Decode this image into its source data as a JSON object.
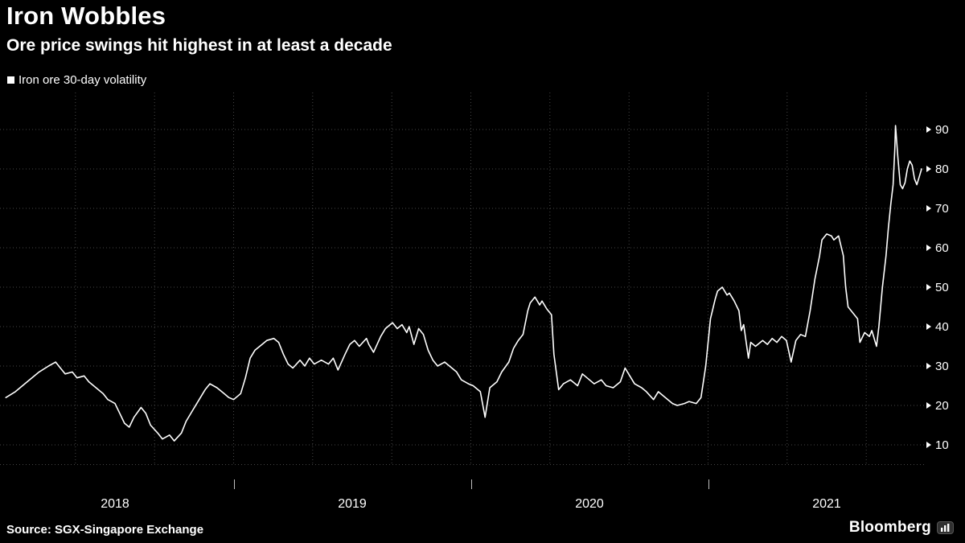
{
  "header": {
    "title": "Iron Wobbles",
    "subtitle": "Ore price swings hit highest in at least a decade"
  },
  "legend": {
    "label": "Iron ore 30-day volatility"
  },
  "footer": {
    "source": "Source: SGX-Singapore Exchange",
    "brand": "Bloomberg"
  },
  "colors": {
    "background": "#000000",
    "line": "#ffffff",
    "grid": "#464646",
    "text": "#ffffff",
    "tick": "#bfbfbf"
  },
  "chart_data": {
    "type": "line",
    "title": "Iron Wobbles",
    "subtitle": "Ore price swings hit highest in at least a decade",
    "series_name": "Iron ore 30-day volatility",
    "legend_position": "top-left",
    "y_axis_side": "right",
    "grid": "dotted",
    "x_unit": "decimal_year",
    "x_domain": [
      2018.0153,
      2021.9203
    ],
    "y_domain": [
      1.43,
      99.39
    ],
    "y_ticks": [
      10,
      20,
      30,
      40,
      50,
      60,
      70,
      80,
      90
    ],
    "y_baseline": 5,
    "x_tick_labels": [
      "2018",
      "2019",
      "2020",
      "2021"
    ],
    "x_tick_centers": [
      2018.5,
      2019.5,
      2020.5,
      2021.5
    ],
    "year_boundaries": [
      2019,
      2020,
      2021
    ],
    "x": [
      2018.04,
      2018.08,
      2018.13,
      2018.18,
      2018.22,
      2018.25,
      2018.27,
      2018.29,
      2018.32,
      2018.34,
      2018.37,
      2018.39,
      2018.42,
      2018.45,
      2018.47,
      2018.5,
      2018.52,
      2018.54,
      2018.56,
      2018.58,
      2018.61,
      2018.63,
      2018.65,
      2018.68,
      2018.7,
      2018.73,
      2018.75,
      2018.78,
      2018.8,
      2018.83,
      2018.86,
      2018.88,
      2018.9,
      2018.93,
      2018.96,
      2018.98,
      2019.0,
      2019.03,
      2019.05,
      2019.07,
      2019.09,
      2019.12,
      2019.14,
      2019.17,
      2019.19,
      2019.21,
      2019.23,
      2019.25,
      2019.28,
      2019.3,
      2019.32,
      2019.34,
      2019.37,
      2019.4,
      2019.42,
      2019.44,
      2019.47,
      2019.49,
      2019.51,
      2019.53,
      2019.56,
      2019.57,
      2019.59,
      2019.62,
      2019.64,
      2019.67,
      2019.69,
      2019.71,
      2019.73,
      2019.74,
      2019.76,
      2019.78,
      2019.8,
      2019.82,
      2019.84,
      2019.86,
      2019.89,
      2019.91,
      2019.94,
      2019.96,
      2019.99,
      2020.01,
      2020.04,
      2020.06,
      2020.08,
      2020.11,
      2020.13,
      2020.16,
      2020.18,
      2020.2,
      2020.22,
      2020.24,
      2020.25,
      2020.27,
      2020.29,
      2020.3,
      2020.32,
      2020.34,
      2020.35,
      2020.37,
      2020.39,
      2020.42,
      2020.45,
      2020.47,
      2020.5,
      2020.52,
      2020.55,
      2020.57,
      2020.6,
      2020.63,
      2020.65,
      2020.67,
      2020.69,
      2020.72,
      2020.74,
      2020.77,
      2020.79,
      2020.82,
      2020.85,
      2020.87,
      2020.9,
      2020.92,
      2020.95,
      2020.97,
      2020.99,
      2021.01,
      2021.03,
      2021.04,
      2021.06,
      2021.08,
      2021.09,
      2021.11,
      2021.13,
      2021.14,
      2021.15,
      2021.17,
      2021.18,
      2021.2,
      2021.23,
      2021.25,
      2021.27,
      2021.29,
      2021.31,
      2021.33,
      2021.35,
      2021.37,
      2021.39,
      2021.41,
      2021.43,
      2021.45,
      2021.47,
      2021.48,
      2021.5,
      2021.52,
      2021.53,
      2021.55,
      2021.57,
      2021.58,
      2021.59,
      2021.61,
      2021.63,
      2021.64,
      2021.66,
      2021.68,
      2021.69,
      2021.71,
      2021.72,
      2021.735,
      2021.75,
      2021.76,
      2021.77,
      2021.78,
      2021.787,
      2021.79,
      2021.8,
      2021.81,
      2021.82,
      2021.83,
      2021.84,
      2021.85,
      2021.86,
      2021.87,
      2021.88,
      2021.89,
      2021.9
    ],
    "y": [
      22,
      23.5,
      26,
      28.5,
      30,
      31,
      29.5,
      28,
      28.5,
      27,
      27.5,
      26,
      24.5,
      23,
      21.5,
      20.5,
      18,
      15.5,
      14.5,
      17,
      19.5,
      18,
      15,
      13,
      11.5,
      12.5,
      11,
      13,
      16,
      19,
      22,
      24,
      25.5,
      24.5,
      23,
      22,
      21.5,
      23,
      27,
      32,
      34,
      35.5,
      36.5,
      37,
      36,
      33,
      30.5,
      29.5,
      31.5,
      30,
      32,
      30.5,
      31.5,
      30.5,
      32,
      29,
      33,
      35.5,
      36.5,
      35,
      37,
      35.5,
      33.5,
      37.5,
      39.5,
      41,
      39.5,
      40.5,
      38.5,
      40,
      35.5,
      39.5,
      38,
      34,
      31.5,
      30,
      31,
      30,
      28.5,
      26.5,
      25.5,
      25,
      23.5,
      17,
      24.5,
      26,
      28.5,
      31,
      34.5,
      36.5,
      38,
      44,
      46,
      47.5,
      45.5,
      46.5,
      44.5,
      43,
      33,
      24,
      25.5,
      26.5,
      25,
      28,
      26.5,
      25.5,
      26.5,
      25,
      24.5,
      26,
      29.5,
      27.5,
      25.5,
      24.5,
      23.5,
      21.5,
      23.5,
      22,
      20.5,
      20,
      20.5,
      21,
      20.5,
      22,
      30,
      42,
      47,
      49,
      50,
      48,
      48.5,
      46.5,
      44,
      39,
      40.5,
      32,
      36,
      35,
      36.5,
      35.5,
      37,
      36,
      37.5,
      36.5,
      31,
      36.5,
      38,
      37.5,
      44,
      52,
      58,
      62,
      63.5,
      63,
      62,
      63,
      58,
      50,
      45,
      43.5,
      42,
      36,
      38.5,
      37.5,
      39,
      35,
      40,
      50,
      58,
      65,
      71,
      76,
      85,
      91,
      83,
      76,
      75,
      76.5,
      80,
      82,
      81,
      77.5,
      76,
      78,
      80
    ]
  }
}
